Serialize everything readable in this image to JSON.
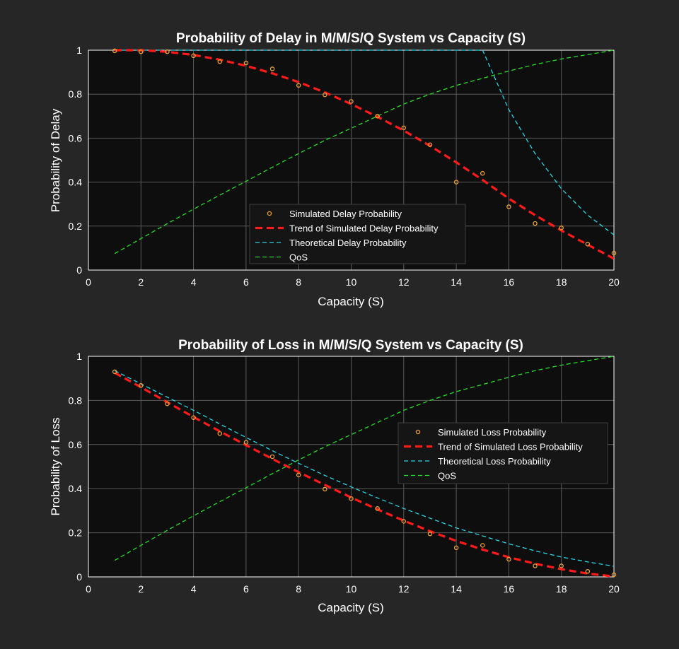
{
  "figure": {
    "background": "#262626",
    "axes_background": "#0e0e0e",
    "grid_color": "#5a5a5a"
  },
  "chart_data": [
    {
      "type": "line",
      "title": "Probability of Delay in M/M/S/Q System vs Capacity (S)",
      "xlabel": "Capacity (S)",
      "ylabel": "Probability of Delay",
      "xlim": [
        0,
        20
      ],
      "ylim": [
        0,
        1
      ],
      "xticks": [
        "0",
        "2",
        "4",
        "6",
        "8",
        "10",
        "12",
        "14",
        "16",
        "18",
        "20"
      ],
      "yticks": [
        "0",
        "0.2",
        "0.4",
        "0.6",
        "0.8",
        "1"
      ],
      "grid": true,
      "legend_position": "center-bottom",
      "x": [
        1,
        2,
        3,
        4,
        5,
        6,
        7,
        8,
        9,
        10,
        11,
        12,
        13,
        14,
        15,
        16,
        17,
        18,
        19,
        20
      ],
      "series": [
        {
          "name": "Simulated Delay Probability",
          "style": "markers",
          "color": "#f0a030",
          "values": [
            0.997,
            0.993,
            0.993,
            0.975,
            0.948,
            0.942,
            0.915,
            0.84,
            0.797,
            0.767,
            0.7,
            0.647,
            0.57,
            0.4,
            0.44,
            0.288,
            0.212,
            0.192,
            0.118,
            0.077
          ]
        },
        {
          "name": "Trend of Simulated Delay Probability",
          "style": "dashed-thick",
          "color": "#ff1a1a",
          "values": [
            1.0,
            1.0,
            0.993,
            0.978,
            0.957,
            0.929,
            0.895,
            0.855,
            0.808,
            0.755,
            0.697,
            0.634,
            0.565,
            0.49,
            0.41,
            0.325,
            0.25,
            0.18,
            0.115,
            0.052
          ]
        },
        {
          "name": "Theoretical Delay Probability",
          "style": "dashed",
          "color": "#22d8e6",
          "values": [
            1,
            1,
            1,
            1,
            1,
            1,
            1,
            1,
            1,
            1,
            1,
            1,
            1,
            1,
            1.0,
            0.73,
            0.53,
            0.37,
            0.25,
            0.16
          ]
        },
        {
          "name": "QoS",
          "style": "dashed",
          "color": "#22dd22",
          "values": [
            0.075,
            0.143,
            0.211,
            0.277,
            0.341,
            0.404,
            0.468,
            0.53,
            0.59,
            0.645,
            0.7,
            0.755,
            0.8,
            0.84,
            0.872,
            0.905,
            0.935,
            0.96,
            0.98,
            1.0
          ]
        }
      ]
    },
    {
      "type": "line",
      "title": "Probability of Loss in M/M/S/Q System vs Capacity (S)",
      "xlabel": "Capacity (S)",
      "ylabel": "Probability of Loss",
      "xlim": [
        0,
        20
      ],
      "ylim": [
        0,
        1
      ],
      "xticks": [
        "0",
        "2",
        "4",
        "6",
        "8",
        "10",
        "12",
        "14",
        "16",
        "18",
        "20"
      ],
      "yticks": [
        "0",
        "0.2",
        "0.4",
        "0.6",
        "0.8",
        "1"
      ],
      "grid": true,
      "legend_position": "right",
      "x": [
        1,
        2,
        3,
        4,
        5,
        6,
        7,
        8,
        9,
        10,
        11,
        12,
        13,
        14,
        15,
        16,
        17,
        18,
        19,
        20
      ],
      "series": [
        {
          "name": "Simulated Loss Probability",
          "style": "markers",
          "color": "#f0a030",
          "values": [
            0.93,
            0.868,
            0.785,
            0.722,
            0.65,
            0.61,
            0.545,
            0.462,
            0.398,
            0.355,
            0.31,
            0.252,
            0.195,
            0.132,
            0.143,
            0.08,
            0.05,
            0.05,
            0.025,
            0.01
          ]
        },
        {
          "name": "Trend of Simulated Loss Probability",
          "style": "dashed-thick",
          "color": "#ff1a1a",
          "values": [
            0.925,
            0.86,
            0.792,
            0.725,
            0.66,
            0.597,
            0.535,
            0.475,
            0.417,
            0.36,
            0.306,
            0.255,
            0.207,
            0.163,
            0.124,
            0.089,
            0.06,
            0.035,
            0.015,
            0.002
          ]
        },
        {
          "name": "Theoretical Loss Probability",
          "style": "dashed",
          "color": "#22d8e6",
          "values": [
            0.935,
            0.875,
            0.815,
            0.755,
            0.693,
            0.632,
            0.572,
            0.515,
            0.46,
            0.408,
            0.358,
            0.31,
            0.266,
            0.222,
            0.186,
            0.15,
            0.118,
            0.09,
            0.068,
            0.048
          ]
        },
        {
          "name": "QoS",
          "style": "dashed",
          "color": "#22dd22",
          "values": [
            0.075,
            0.143,
            0.211,
            0.277,
            0.341,
            0.404,
            0.468,
            0.53,
            0.59,
            0.645,
            0.7,
            0.755,
            0.8,
            0.84,
            0.872,
            0.905,
            0.935,
            0.96,
            0.98,
            1.0
          ]
        }
      ]
    }
  ]
}
